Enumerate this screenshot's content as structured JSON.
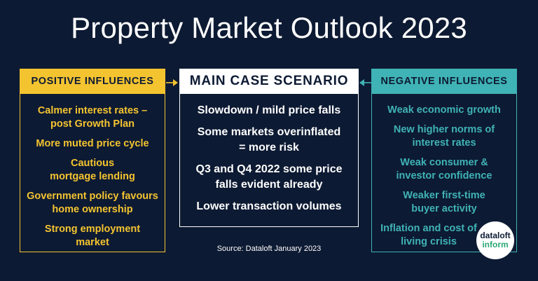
{
  "title": "Property Market Outlook 2023",
  "positive": {
    "header": "POSITIVE INFLUENCES",
    "items": [
      "Calmer interest rates – post Growth Plan",
      "More muted price cycle",
      "Cautious mortgage lending",
      "Government policy favours home ownership",
      "Strong employment market"
    ]
  },
  "main": {
    "header": "MAIN CASE SCENARIO",
    "items": [
      "Slowdown / mild price falls",
      "Some markets overinflated = more risk",
      "Q3 and Q4 2022 some price falls evident already",
      "Lower transaction volumes"
    ]
  },
  "negative": {
    "header": "NEGATIVE INFLUENCES",
    "items": [
      "Weak economic growth",
      "New higher norms of interest rates",
      "Weak consumer & investor confidence",
      "Weaker first-time buyer activity",
      "Inflation and cost of living crisis"
    ]
  },
  "source": "Source: Dataloft January 2023",
  "logo": {
    "line1": "dataloft",
    "line2": "inform"
  },
  "colors": {
    "background": "#0d1a33",
    "positive": "#f4c430",
    "negative": "#3fb3b5",
    "main": "#ffffff",
    "logo_accent": "#2aa876"
  }
}
